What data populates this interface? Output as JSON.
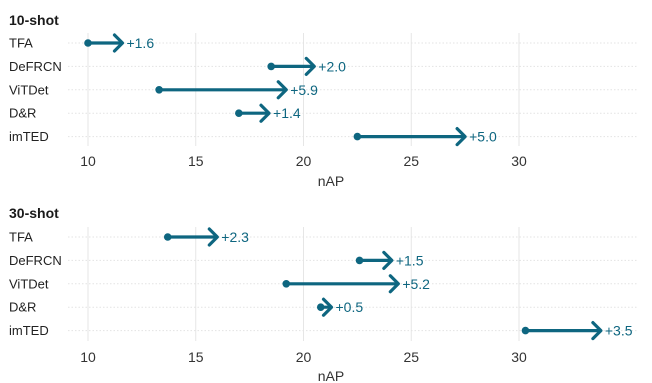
{
  "colors": {
    "arrow": "#0e6680",
    "label": "#0e6680"
  },
  "chart_data": [
    {
      "type": "dumbbell-arrow",
      "title": "10-shot",
      "xlabel": "nAP",
      "xlim": [
        8.9,
        35.4
      ],
      "xticks": [
        10,
        15,
        20,
        25,
        30
      ],
      "grid": true,
      "categories": [
        "TFA",
        "DeFRCN",
        "ViTDet",
        "D&R",
        "imTED"
      ],
      "start": [
        10.0,
        18.5,
        13.3,
        17.0,
        22.5
      ],
      "end": [
        11.6,
        20.5,
        19.2,
        18.4,
        27.5
      ],
      "labels": [
        "+1.6",
        "+2.0",
        "+5.9",
        "+1.4",
        "+5.0"
      ]
    },
    {
      "type": "dumbbell-arrow",
      "title": "30-shot",
      "xlabel": "nAP",
      "xlim": [
        8.9,
        35.4
      ],
      "xticks": [
        10,
        15,
        20,
        25,
        30
      ],
      "grid": true,
      "categories": [
        "TFA",
        "DeFRCN",
        "ViTDet",
        "D&R",
        "imTED"
      ],
      "start": [
        13.7,
        22.6,
        19.2,
        20.8,
        30.3
      ],
      "end": [
        16.0,
        24.1,
        24.4,
        21.3,
        33.8
      ],
      "labels": [
        "+2.3",
        "+1.5",
        "+5.2",
        "+0.5",
        "+3.5"
      ]
    }
  ]
}
